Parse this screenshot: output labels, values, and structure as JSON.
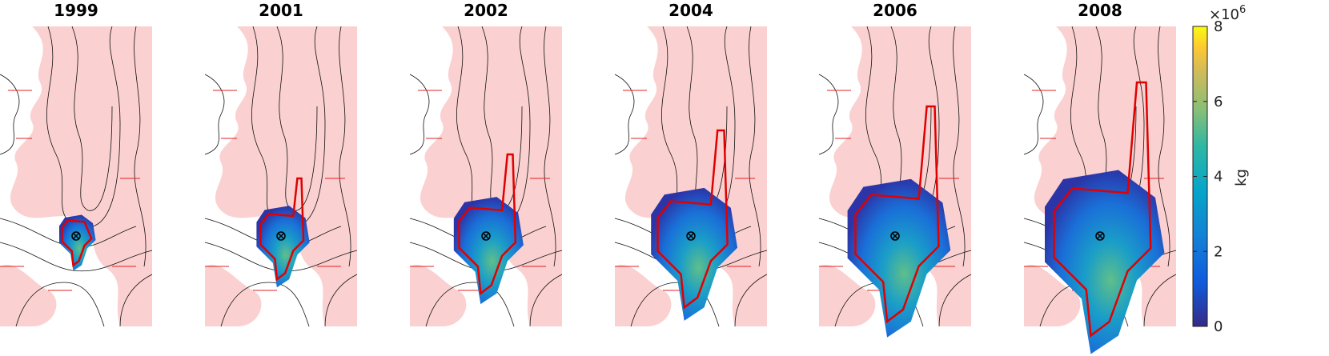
{
  "panels": [
    {
      "title": "1999"
    },
    {
      "title": "2001"
    },
    {
      "title": "2002"
    },
    {
      "title": "2004"
    },
    {
      "title": "2006"
    },
    {
      "title": "2008"
    }
  ],
  "colorbar": {
    "label": "kg",
    "exponent_base": "×10",
    "exponent": "6",
    "lim": [
      0,
      8
    ],
    "ticks": [
      0,
      2,
      4,
      6,
      8
    ]
  }
}
